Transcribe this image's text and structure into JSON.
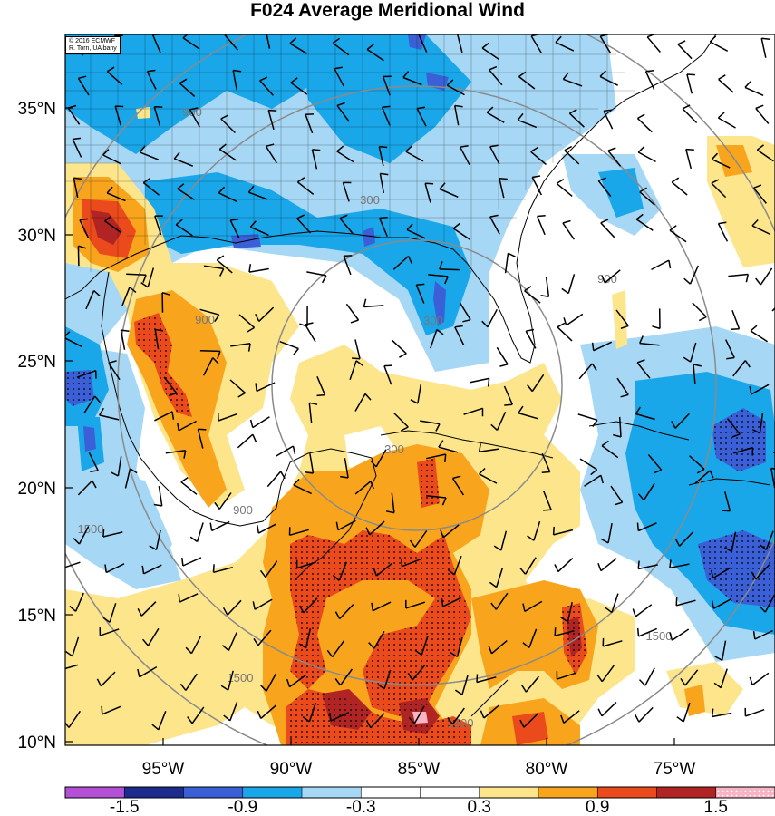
{
  "title": "F024 Average Meridional Wind",
  "credit": {
    "line1": "© 2016 ECMWF",
    "line2": "R. Torn, UAlbany"
  },
  "lat_labels": [
    "35°N",
    "30°N",
    "25°N",
    "20°N",
    "15°N",
    "10°N"
  ],
  "lon_labels": [
    "95°W",
    "90°W",
    "85°W",
    "80°W",
    "75°W"
  ],
  "colorbar": {
    "colors": [
      "#b44fd8",
      "#1d2b8e",
      "#3a5fd6",
      "#1aa7ea",
      "#a6d8f6",
      "#ffffff",
      "#ffffff",
      "#fde58c",
      "#f8a51d",
      "#ea4a1c",
      "#b02423",
      "#f6b4c5"
    ],
    "tick_labels": [
      "-1.5",
      "-0.9",
      "-0.3",
      "0.3",
      "0.9",
      "1.5"
    ]
  },
  "contour_labels": [
    "900",
    "300",
    "300",
    "900",
    "900",
    "1500",
    "1500",
    "1500",
    "1500",
    "300",
    "900"
  ]
}
